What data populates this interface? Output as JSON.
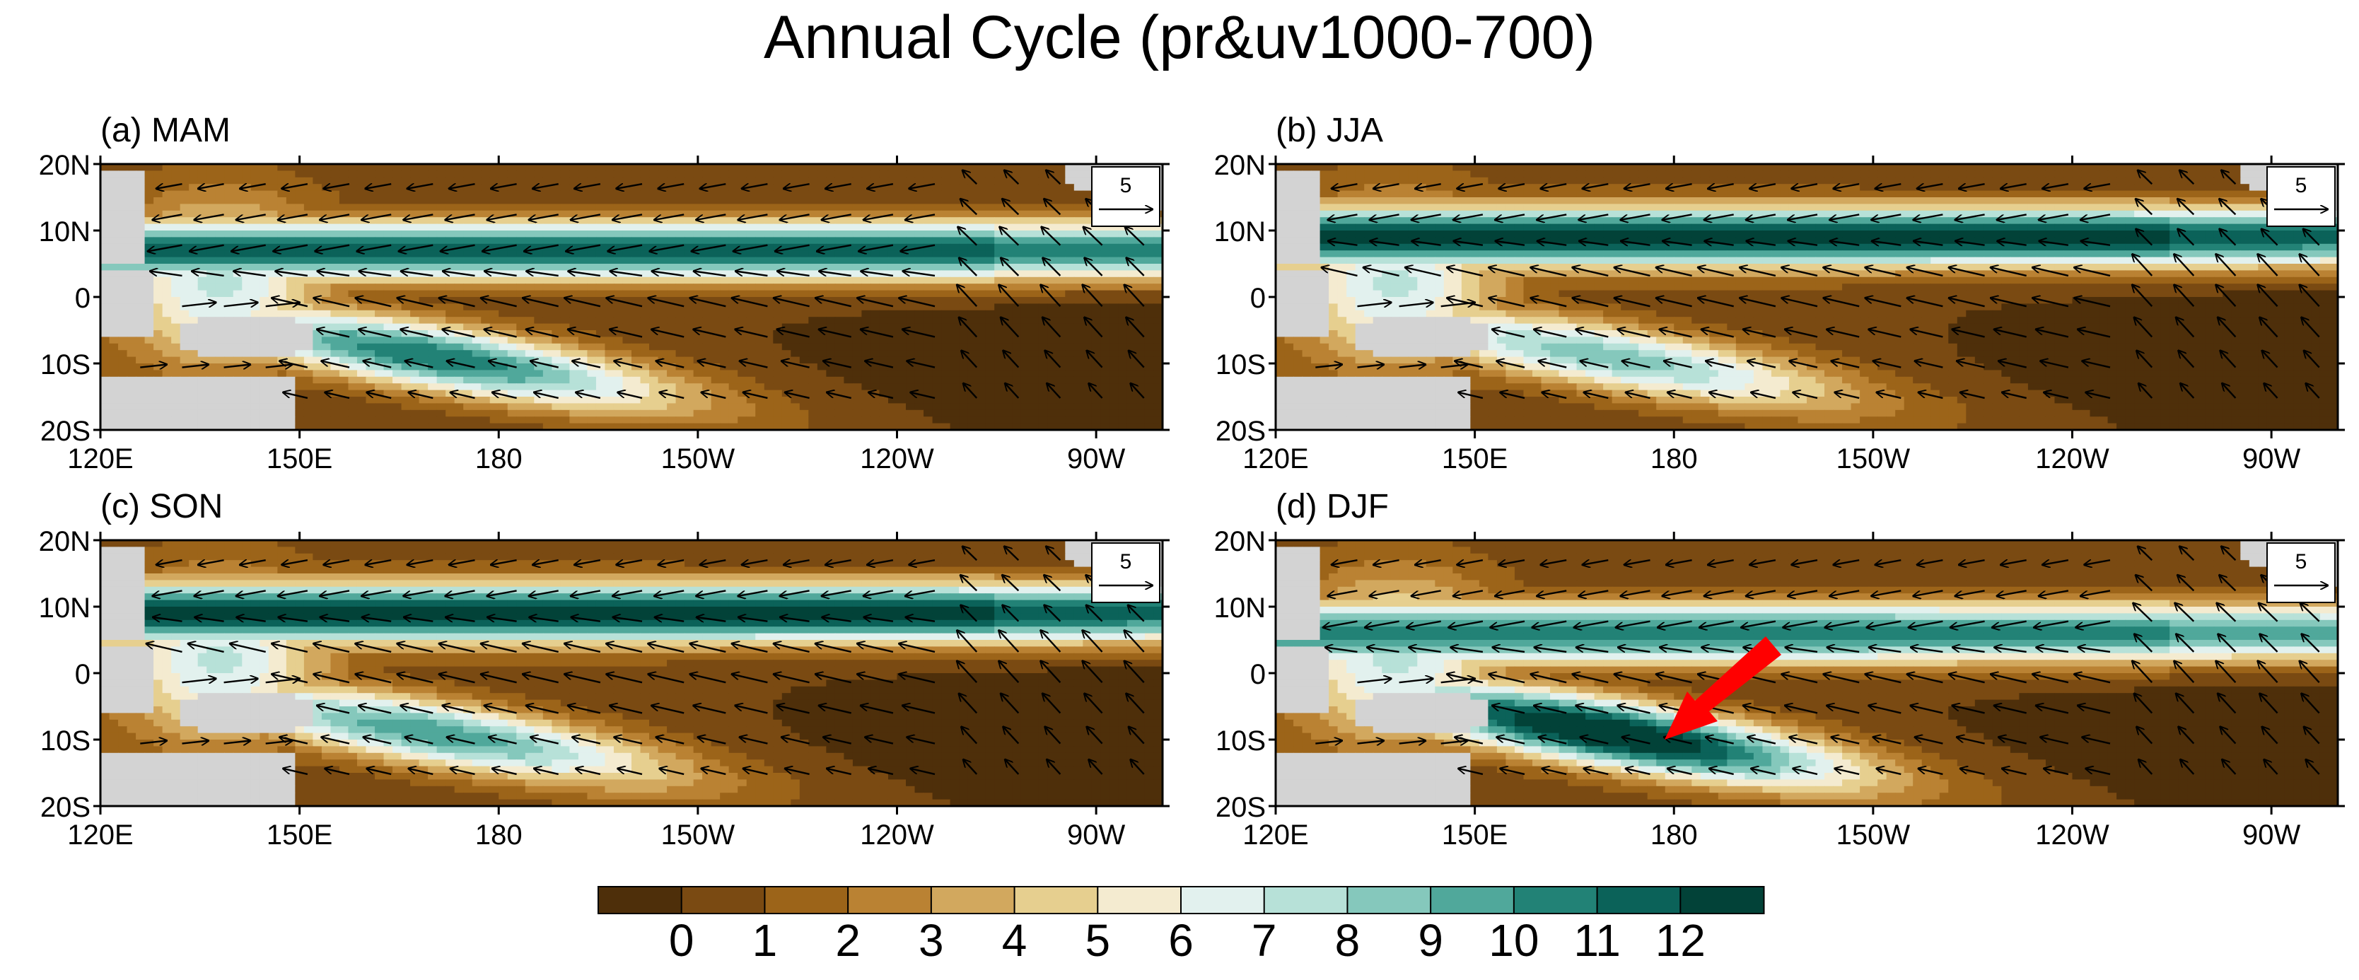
{
  "figure": {
    "title": "Annual Cycle (pr&uv1000-700)"
  },
  "chart_data": {
    "type": "heatmap",
    "variable_shaded": "pr",
    "variable_vectors": "uv1000-700",
    "x_tick_labels": [
      "120E",
      "150E",
      "180",
      "150W",
      "120W",
      "90W"
    ],
    "y_tick_labels": [
      "20N",
      "10N",
      "0",
      "10S",
      "20S"
    ],
    "x_range_deg_east": [
      120,
      280
    ],
    "y_range_deg_north": [
      -20,
      20
    ],
    "reference_vector": {
      "value": "5",
      "magnitude": 5
    },
    "colorbar": {
      "levels": [
        "0",
        "1",
        "2",
        "3",
        "4",
        "5",
        "6",
        "7",
        "8",
        "9",
        "10",
        "11",
        "12"
      ],
      "colors": [
        "#4e2f0a",
        "#7a4a12",
        "#9c6419",
        "#ba8233",
        "#d2a85e",
        "#e6cf8f",
        "#f4ebd0",
        "#e2f1ee",
        "#b7e1d8",
        "#85c8bc",
        "#50a89b",
        "#228276",
        "#0b6259",
        "#024238"
      ]
    },
    "panels": [
      {
        "label": "(a) MAM",
        "season": "MAM",
        "itcz_lat": 7,
        "itcz_strength": 0.95,
        "spcz": 0.9,
        "arrow": false
      },
      {
        "label": "(b) JJA",
        "season": "JJA",
        "itcz_lat": 9,
        "itcz_strength": 1.0,
        "spcz": 0.7,
        "arrow": false
      },
      {
        "label": "(c) SON",
        "season": "SON",
        "itcz_lat": 9,
        "itcz_strength": 1.0,
        "spcz": 0.8,
        "arrow": false
      },
      {
        "label": "(d) DJF",
        "season": "DJF",
        "itcz_lat": 6,
        "itcz_strength": 0.85,
        "spcz": 1.15,
        "arrow": true
      }
    ],
    "annotation": {
      "type": "arrow",
      "color": "#ff0000",
      "panel": "(d) DJF"
    }
  }
}
